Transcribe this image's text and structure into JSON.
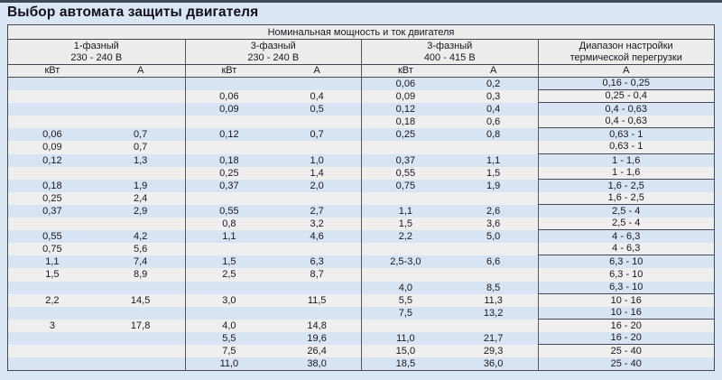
{
  "title": "Выбор автомата защиты двигателя",
  "colors": {
    "page_bg": "#dbe6f4",
    "topbar": "#414b5a",
    "header_bg": "#ededee",
    "stripe_blue": "#d8e3f3",
    "stripe_gray": "#efeff0",
    "border": "#47474f",
    "vline": "#55565e",
    "text": "#17171f",
    "title_color": "#10101a"
  },
  "table": {
    "span_header": "Номинальная мощность и ток двигателя",
    "groups": [
      {
        "line1": "1-фазный",
        "line2": "230 - 240 В",
        "col1": "кВт",
        "col2": "А"
      },
      {
        "line1": "3-фазный",
        "line2": "230 - 240 В",
        "col1": "кВт",
        "col2": "А"
      },
      {
        "line1": "3-фазный",
        "line2": "400 - 415 В",
        "col1": "кВт",
        "col2": "А"
      },
      {
        "line1": "Диапазон настройки",
        "line2": "термической перегрузки",
        "col1": "А"
      }
    ],
    "rows": [
      {
        "cells": [
          "",
          "",
          "",
          "",
          "0,06",
          "0,2",
          "0,16 - 0,25"
        ],
        "divider": true
      },
      {
        "cells": [
          "",
          "",
          "0,06",
          "0,4",
          "0,09",
          "0,3",
          "0,25 - 0,4"
        ],
        "divider": true
      },
      {
        "cells": [
          "",
          "",
          "0,09",
          "0,5",
          "0,12",
          "0,4",
          "0,4 - 0,63"
        ],
        "divider": false
      },
      {
        "cells": [
          "",
          "",
          "",
          "",
          "0,18",
          "0,6",
          "0,4 - 0,63"
        ],
        "divider": true
      },
      {
        "cells": [
          "0,06",
          "0,7",
          "0,12",
          "0,7",
          "0,25",
          "0,8",
          "0,63 - 1"
        ],
        "divider": false
      },
      {
        "cells": [
          "0,09",
          "0,7",
          "",
          "",
          "",
          "",
          "0,63 - 1"
        ],
        "divider": true
      },
      {
        "cells": [
          "0,12",
          "1,3",
          "0,18",
          "1,0",
          "0,37",
          "1,1",
          "1 - 1,6"
        ],
        "divider": false
      },
      {
        "cells": [
          "",
          "",
          "0,25",
          "1,4",
          "0,55",
          "1,5",
          "1 - 1,6"
        ],
        "divider": true
      },
      {
        "cells": [
          "0,18",
          "1,9",
          "0,37",
          "2,0",
          "0,75",
          "1,9",
          "1,6 - 2,5"
        ],
        "divider": false
      },
      {
        "cells": [
          "0,25",
          "2,4",
          "",
          "",
          "",
          "",
          "1,6 - 2,5"
        ],
        "divider": true
      },
      {
        "cells": [
          "0,37",
          "2,9",
          "0,55",
          "2,7",
          "1,1",
          "2,6",
          "2,5 - 4"
        ],
        "divider": false
      },
      {
        "cells": [
          "",
          "",
          "0,8",
          "3,2",
          "1,5",
          "3,6",
          "2,5 - 4"
        ],
        "divider": true
      },
      {
        "cells": [
          "0,55",
          "4,2",
          "1,1",
          "4,6",
          "2,2",
          "5,0",
          "4 - 6,3"
        ],
        "divider": false
      },
      {
        "cells": [
          "0,75",
          "5,6",
          "",
          "",
          "",
          "",
          "4 - 6,3"
        ],
        "divider": true
      },
      {
        "cells": [
          "1,1",
          "7,4",
          "1,5",
          "6,3",
          "2,5-3,0",
          "6,6",
          "6,3 - 10"
        ],
        "divider": false
      },
      {
        "cells": [
          "1,5",
          "8,9",
          "2,5",
          "8,7",
          "",
          "",
          "6,3 - 10"
        ],
        "divider": false
      },
      {
        "cells": [
          "",
          "",
          "",
          "",
          "4,0",
          "8,5",
          "6,3 - 10"
        ],
        "divider": true
      },
      {
        "cells": [
          "2,2",
          "14,5",
          "3,0",
          "11,5",
          "5,5",
          "11,3",
          "10 - 16"
        ],
        "divider": false
      },
      {
        "cells": [
          "",
          "",
          "",
          "",
          "7,5",
          "13,2",
          "10 - 16"
        ],
        "divider": true
      },
      {
        "cells": [
          "3",
          "17,8",
          "4,0",
          "14,8",
          "",
          "",
          "16 - 20"
        ],
        "divider": false
      },
      {
        "cells": [
          "",
          "",
          "5,5",
          "19,6",
          "11,0",
          "21,7",
          "16 - 20"
        ],
        "divider": true
      },
      {
        "cells": [
          "",
          "",
          "7,5",
          "26,4",
          "15,0",
          "29,3",
          "25 - 40"
        ],
        "divider": false
      },
      {
        "cells": [
          "",
          "",
          "11,0",
          "38,0",
          "18,5",
          "36,0",
          "25 - 40"
        ],
        "divider": false
      }
    ]
  }
}
